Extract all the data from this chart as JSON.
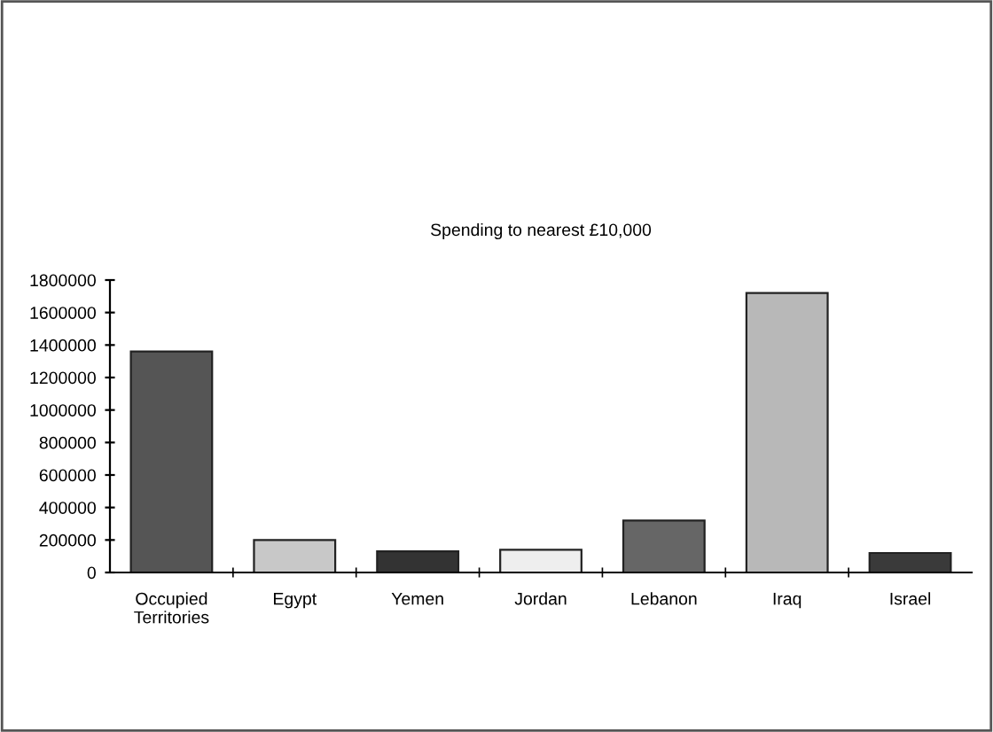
{
  "chart_data": {
    "type": "bar",
    "title": "Spending to nearest £10,000",
    "categories": [
      "Occupied\nTerritories",
      "Egypt",
      "Yemen",
      "Jordan",
      "Lebanon",
      "Iraq",
      "Israel"
    ],
    "values": [
      1360000,
      200000,
      130000,
      140000,
      320000,
      1720000,
      120000
    ],
    "colors": [
      "#555555",
      "#c8c8c8",
      "#333333",
      "#eeeeee",
      "#666666",
      "#b8b8b8",
      "#3a3a3a"
    ],
    "ylim": [
      0,
      1800000
    ],
    "yticks": [
      0,
      200000,
      400000,
      600000,
      800000,
      1000000,
      1200000,
      1400000,
      1600000,
      1800000
    ],
    "grid": false
  }
}
